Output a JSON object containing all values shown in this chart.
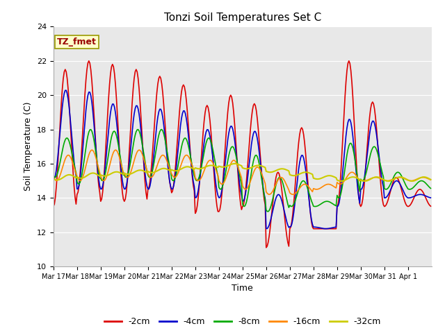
{
  "title": "Tonzi Soil Temperatures Set C",
  "xlabel": "Time",
  "ylabel": "Soil Temperature (C)",
  "ylim": [
    10,
    24
  ],
  "yticks": [
    10,
    12,
    14,
    16,
    18,
    20,
    22,
    24
  ],
  "outer_bg": "#ffffff",
  "plot_bg_color": "#e8e8e8",
  "annotation_text": "TZ_fmet",
  "annotation_color": "#990000",
  "annotation_bg": "#ffffcc",
  "annotation_border": "#999900",
  "series_colors": {
    "-2cm": "#dd0000",
    "-4cm": "#0000cc",
    "-8cm": "#00aa00",
    "-16cm": "#ff8800",
    "-32cm": "#cccc00"
  },
  "legend_labels": [
    "-2cm",
    "-4cm",
    "-8cm",
    "-16cm",
    "-32cm"
  ],
  "xtick_labels": [
    "Mar 17",
    "Mar 18",
    "Mar 19",
    "Mar 20",
    "Mar 21",
    "Mar 22",
    "Mar 23",
    "Mar 24",
    "Mar 25",
    "Mar 26",
    "Mar 27",
    "Mar 28",
    "Mar 29",
    "Mar 30",
    "Mar 31",
    "Apr 1"
  ],
  "num_days": 16
}
